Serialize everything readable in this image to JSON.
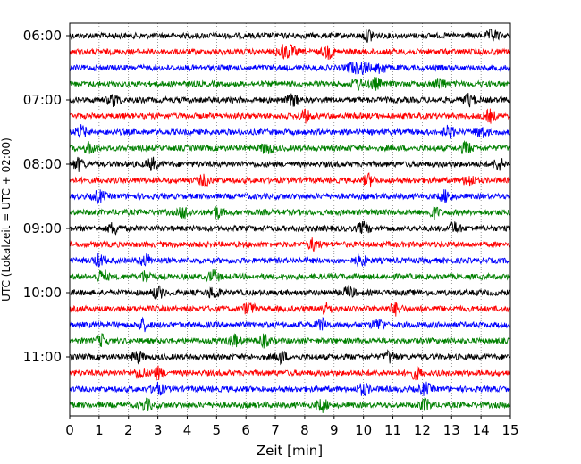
{
  "chart_data": {
    "type": "line",
    "title": "",
    "xlabel": "Zeit  [min]",
    "ylabel": "UTC (Lokalzeit = UTC + 02:00)",
    "xlim": [
      0,
      15
    ],
    "x_ticks": [
      "0",
      "1",
      "2",
      "3",
      "4",
      "5",
      "6",
      "7",
      "8",
      "9",
      "10",
      "11",
      "12",
      "13",
      "14",
      "15"
    ],
    "y_ticks": [
      "06:00",
      "07:00",
      "08:00",
      "09:00",
      "10:00",
      "11:00"
    ],
    "trace_interval_min": 15,
    "grid": "vertical dotted lines at every minute",
    "colors": [
      "#000000",
      "#ff0000",
      "#0000ff",
      "#008000"
    ],
    "traces": [
      {
        "start": "06:00",
        "color": "#000000",
        "events_min": [
          10.2,
          14.4
        ]
      },
      {
        "start": "06:15",
        "color": "#ff0000",
        "events_min": [
          7.2,
          7.5,
          8.8
        ]
      },
      {
        "start": "06:30",
        "color": "#0000ff",
        "events_min": [
          9.6,
          10.0,
          10.6
        ]
      },
      {
        "start": "06:45",
        "color": "#008000",
        "events_min": [
          9.8,
          10.4,
          12.6
        ]
      },
      {
        "start": "07:00",
        "color": "#000000",
        "events_min": [
          1.5,
          7.6,
          13.6
        ]
      },
      {
        "start": "07:15",
        "color": "#ff0000",
        "events_min": [
          8.0,
          14.3
        ]
      },
      {
        "start": "07:30",
        "color": "#0000ff",
        "events_min": [
          0.4,
          12.9,
          14.0
        ]
      },
      {
        "start": "07:45",
        "color": "#008000",
        "events_min": [
          0.7,
          6.7,
          13.5
        ]
      },
      {
        "start": "08:00",
        "color": "#000000",
        "events_min": [
          0.3,
          2.8,
          14.6
        ]
      },
      {
        "start": "08:15",
        "color": "#ff0000",
        "events_min": [
          4.6,
          10.2,
          13.6
        ]
      },
      {
        "start": "08:30",
        "color": "#0000ff",
        "events_min": [
          1.0,
          12.8
        ]
      },
      {
        "start": "08:45",
        "color": "#008000",
        "events_min": [
          3.9,
          5.0,
          12.4
        ]
      },
      {
        "start": "09:00",
        "color": "#000000",
        "events_min": [
          1.5,
          10.0,
          13.1
        ]
      },
      {
        "start": "09:15",
        "color": "#ff0000",
        "events_min": [
          8.3
        ]
      },
      {
        "start": "09:30",
        "color": "#0000ff",
        "events_min": [
          1.0,
          2.6,
          9.9
        ]
      },
      {
        "start": "09:45",
        "color": "#008000",
        "events_min": [
          1.1,
          2.6,
          4.9
        ]
      },
      {
        "start": "10:00",
        "color": "#000000",
        "events_min": [
          3.0,
          4.9,
          9.5
        ]
      },
      {
        "start": "10:15",
        "color": "#ff0000",
        "events_min": [
          6.1,
          8.7,
          11.1
        ]
      },
      {
        "start": "10:30",
        "color": "#0000ff",
        "events_min": [
          2.5,
          8.6,
          10.5
        ]
      },
      {
        "start": "10:45",
        "color": "#008000",
        "events_min": [
          1.1,
          5.6,
          6.6
        ]
      },
      {
        "start": "11:00",
        "color": "#000000",
        "events_min": [
          2.3,
          7.2,
          10.9
        ]
      },
      {
        "start": "11:15",
        "color": "#ff0000",
        "events_min": [
          2.4,
          3.0,
          11.8
        ]
      },
      {
        "start": "11:30",
        "color": "#0000ff",
        "events_min": [
          3.0,
          10.0,
          12.1
        ]
      },
      {
        "start": "11:45",
        "color": "#008000",
        "events_min": [
          2.6,
          8.6,
          12.1
        ]
      }
    ]
  }
}
